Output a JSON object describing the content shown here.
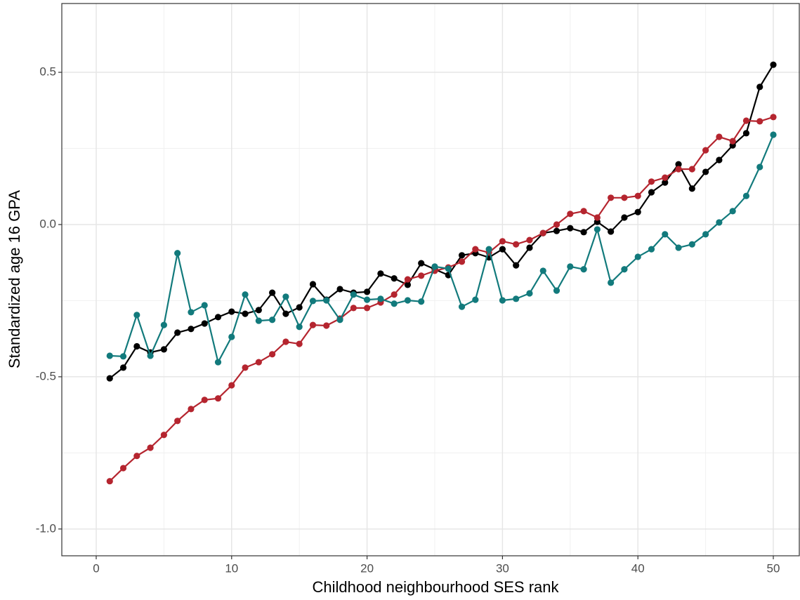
{
  "chart_data": {
    "type": "line",
    "x_label": "Childhood neighbourhood SES rank",
    "y_label": "Standardized age 16 GPA",
    "x": [
      1,
      2,
      3,
      4,
      5,
      6,
      7,
      8,
      9,
      10,
      11,
      12,
      13,
      14,
      15,
      16,
      17,
      18,
      19,
      20,
      21,
      22,
      23,
      24,
      25,
      26,
      27,
      28,
      29,
      30,
      31,
      32,
      33,
      34,
      35,
      36,
      37,
      38,
      39,
      40,
      41,
      42,
      43,
      44,
      45,
      46,
      47,
      48,
      49,
      50
    ],
    "series": [
      {
        "color": "#000000",
        "values": [
          -0.505,
          -0.47,
          -0.4,
          -0.42,
          -0.41,
          -0.355,
          -0.343,
          -0.325,
          -0.304,
          -0.286,
          -0.293,
          -0.281,
          -0.224,
          -0.293,
          -0.272,
          -0.196,
          -0.247,
          -0.212,
          -0.224,
          -0.221,
          -0.161,
          -0.177,
          -0.198,
          -0.127,
          -0.147,
          -0.166,
          -0.101,
          -0.094,
          -0.108,
          -0.081,
          -0.134,
          -0.076,
          -0.028,
          -0.021,
          -0.012,
          -0.025,
          0.009,
          -0.023,
          0.023,
          0.041,
          0.106,
          0.138,
          0.198,
          0.118,
          0.173,
          0.212,
          0.26,
          0.3,
          0.452,
          0.525
        ]
      },
      {
        "color": "#b5252f",
        "values": [
          -0.843,
          -0.8,
          -0.76,
          -0.733,
          -0.691,
          -0.645,
          -0.606,
          -0.576,
          -0.571,
          -0.528,
          -0.47,
          -0.452,
          -0.426,
          -0.385,
          -0.392,
          -0.33,
          -0.332,
          -0.309,
          -0.274,
          -0.274,
          -0.256,
          -0.23,
          -0.18,
          -0.168,
          -0.152,
          -0.141,
          -0.122,
          -0.081,
          -0.092,
          -0.055,
          -0.065,
          -0.051,
          -0.028,
          0,
          0.035,
          0.044,
          0.023,
          0.088,
          0.088,
          0.094,
          0.141,
          0.154,
          0.182,
          0.182,
          0.244,
          0.288,
          0.274,
          0.341,
          0.339,
          0.353
        ]
      },
      {
        "color": "#127a7c",
        "values": [
          -0.431,
          -0.433,
          -0.297,
          -0.431,
          -0.33,
          -0.094,
          -0.288,
          -0.265,
          -0.452,
          -0.369,
          -0.23,
          -0.316,
          -0.313,
          -0.237,
          -0.336,
          -0.251,
          -0.249,
          -0.313,
          -0.23,
          -0.247,
          -0.244,
          -0.26,
          -0.249,
          -0.253,
          -0.138,
          -0.145,
          -0.27,
          -0.247,
          -0.081,
          -0.249,
          -0.244,
          -0.226,
          -0.152,
          -0.217,
          -0.138,
          -0.147,
          -0.016,
          -0.191,
          -0.147,
          -0.106,
          -0.081,
          -0.032,
          -0.076,
          -0.065,
          -0.032,
          0.007,
          0.044,
          0.094,
          0.189,
          0.295
        ]
      }
    ],
    "xlim": [
      -2.54,
      51.97
    ],
    "ylim": [
      -1.088,
      0.726
    ],
    "xticks": [
      0,
      10,
      20,
      30,
      40,
      50
    ],
    "yticks": [
      {
        "value": -1.0,
        "label": "-1.0"
      },
      {
        "value": -0.5,
        "label": "-0.5"
      },
      {
        "value": 0.0,
        "label": "0.0"
      },
      {
        "value": 0.5,
        "label": "0.5"
      }
    ],
    "minor_xticks": [
      5,
      15,
      25,
      35,
      45
    ],
    "minor_yticks": [
      -0.75,
      -0.25,
      0.25
    ],
    "grid": true
  }
}
